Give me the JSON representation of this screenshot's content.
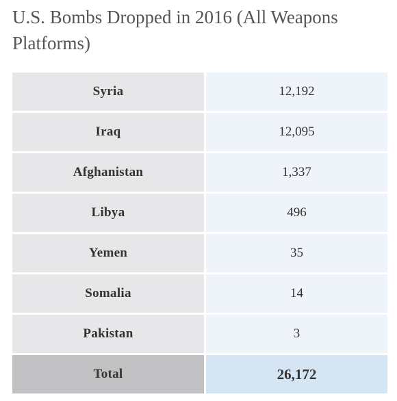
{
  "chart_data": {
    "type": "table",
    "title": "U.S. Bombs Dropped in 2016 (All Weapons Platforms)",
    "rows": [
      {
        "country": "Syria",
        "value": "12,192"
      },
      {
        "country": "Iraq",
        "value": "12,095"
      },
      {
        "country": "Afghanistan",
        "value": "1,337"
      },
      {
        "country": "Libya",
        "value": "496"
      },
      {
        "country": "Yemen",
        "value": "35"
      },
      {
        "country": "Somalia",
        "value": "14"
      },
      {
        "country": "Pakistan",
        "value": "3"
      }
    ],
    "total": {
      "label": "Total",
      "value": "26,172"
    },
    "colors": {
      "label_cell": "#e7e7e9",
      "value_cell": "#eef4fa",
      "total_label_cell": "#c1c1c3",
      "total_value_cell": "#d5e5f3"
    }
  }
}
